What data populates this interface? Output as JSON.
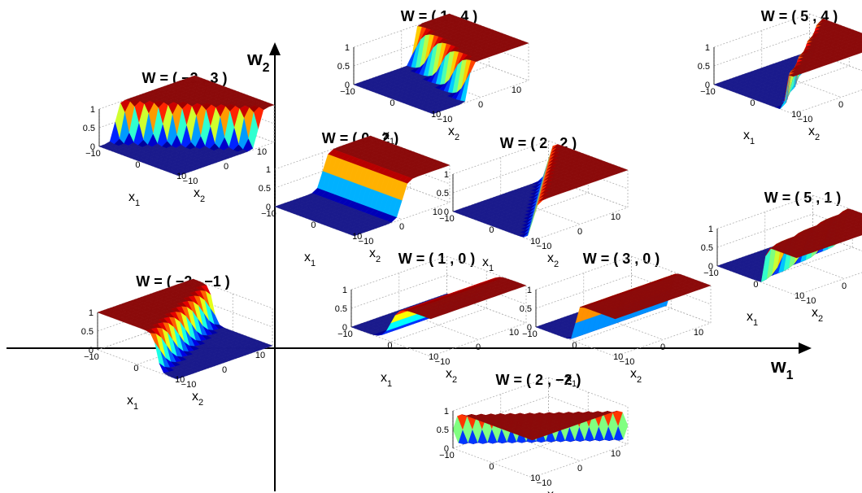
{
  "axes": {
    "horizontal": {
      "label": "w",
      "subscript": "1"
    },
    "vertical": {
      "label": "w",
      "subscript": "2"
    }
  },
  "surface_axes": {
    "z_ticks": [
      "0",
      "0.5",
      "1"
    ],
    "x1_ticks": [
      "−10",
      "0",
      "10"
    ],
    "x2_ticks": [
      "−10",
      "0",
      "10"
    ],
    "x1_label": {
      "label": "x",
      "subscript": "1"
    },
    "x2_label": {
      "label": "x",
      "subscript": "2"
    }
  },
  "colors": {
    "axis": "#000000",
    "grid": "#b0b0b0",
    "surface_low": "#1a1a8c",
    "surface_high": "#8b0a0a"
  },
  "plots": [
    {
      "title": "W = ( 1 , 4 )",
      "w1": 1,
      "w2": 4
    },
    {
      "title": "W = ( 5 , 4 )",
      "w1": 5,
      "w2": 4
    },
    {
      "title": "W = ( −2 , 3 )",
      "w1": -2,
      "w2": 3
    },
    {
      "title": "W = ( 0 , 2 )",
      "w1": 0,
      "w2": 2
    },
    {
      "title": "W = ( 2 , 2 )",
      "w1": 2,
      "w2": 2
    },
    {
      "title": "W = ( 5 , 1 )",
      "w1": 5,
      "w2": 1
    },
    {
      "title": "W = ( 1 , 0 )",
      "w1": 1,
      "w2": 0
    },
    {
      "title": "W = ( 3 , 0 )",
      "w1": 3,
      "w2": 0
    },
    {
      "title": "W = ( −2 , −1 )",
      "w1": -2,
      "w2": -1
    },
    {
      "title": "W = ( 2 , −2 )",
      "w1": 2,
      "w2": -2
    }
  ]
}
